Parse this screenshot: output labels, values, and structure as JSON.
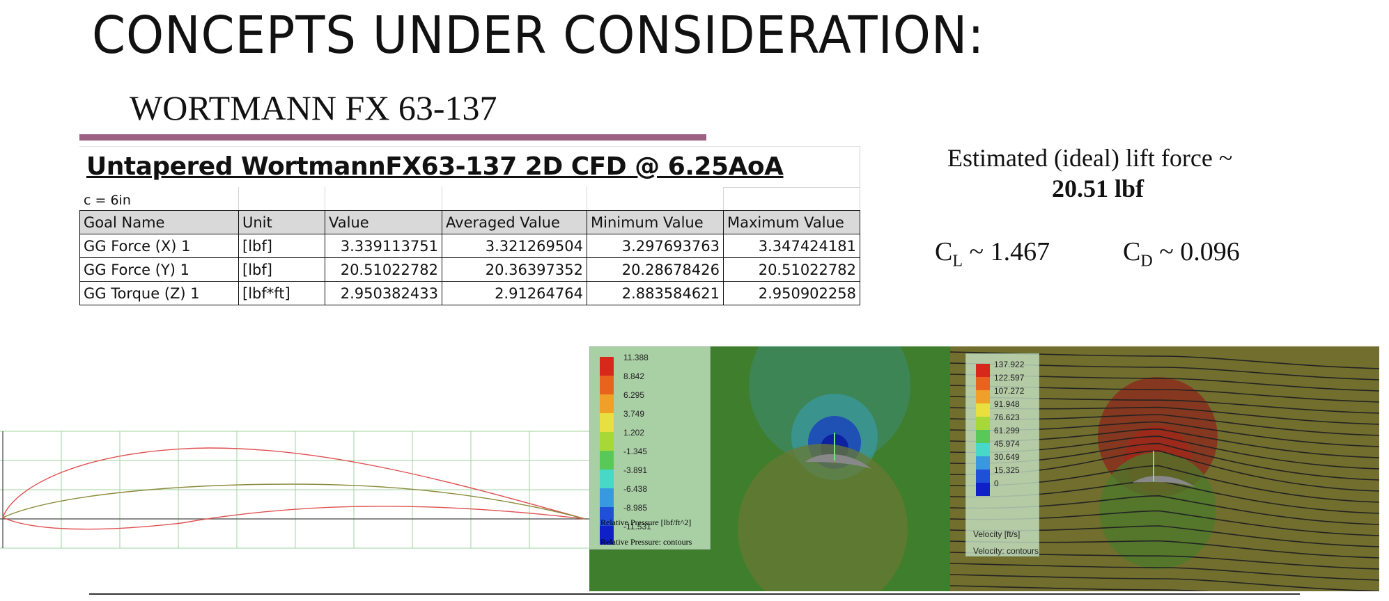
{
  "slide": {
    "title": "CONCEPTS UNDER CONSIDERATION:",
    "subtitle": "WORTMANN FX 63-137"
  },
  "table": {
    "title": "Untapered WortmannFX63-137 2D CFD @ 6.25AoA",
    "note": "c = 6in",
    "headers": [
      "Goal Name",
      "Unit",
      "Value",
      "Averaged Value",
      "Minimum Value",
      "Maximum Value"
    ],
    "rows": [
      [
        "GG Force (X) 1",
        "[lbf]",
        "3.339113751",
        "3.321269504",
        "3.297693763",
        "3.347424181"
      ],
      [
        "GG Force (Y) 1",
        "[lbf]",
        "20.51022782",
        "20.36397352",
        "20.28678426",
        "20.51022782"
      ],
      [
        "GG Torque (Z) 1",
        "[lbf*ft]",
        "2.950382433",
        "2.91264764",
        "2.883584621",
        "2.950902258"
      ]
    ]
  },
  "results": {
    "lift_label": "Estimated (ideal) lift force ~",
    "lift_value": "20.51 lbf",
    "cl_symbol": "C",
    "cl_sub": "L",
    "cl_value": " ~ 1.467",
    "cd_symbol": "C",
    "cd_sub": "D",
    "cd_value": " ~ 0.096"
  },
  "pressure_plot": {
    "legend_values": [
      "11.388",
      "8.842",
      "6.295",
      "3.749",
      "1.202",
      "-1.345",
      "-3.891",
      "-6.438",
      "-8.985",
      "-11.531"
    ],
    "legend_colors": [
      "#d8281c",
      "#e8641e",
      "#f0a028",
      "#e8e040",
      "#a8d838",
      "#58c858",
      "#48d8c8",
      "#3898e0",
      "#2050d8",
      "#1020c8"
    ],
    "unit_label": "Relative Pressure [lbf/ft^2]",
    "mode_label": "Relative Pressure: contours"
  },
  "velocity_plot": {
    "legend_values": [
      "137.922",
      "122.597",
      "107.272",
      "91.948",
      "76.623",
      "61.299",
      "45.974",
      "30.649",
      "15.325",
      "0"
    ],
    "legend_colors": [
      "#d8281c",
      "#e8641e",
      "#f0a028",
      "#e8e040",
      "#a8d838",
      "#58c858",
      "#48d8c8",
      "#3898e0",
      "#2050d8",
      "#1020c8"
    ],
    "unit_label": "Velocity [ft/s]",
    "mode_label": "Velocity: contours"
  }
}
